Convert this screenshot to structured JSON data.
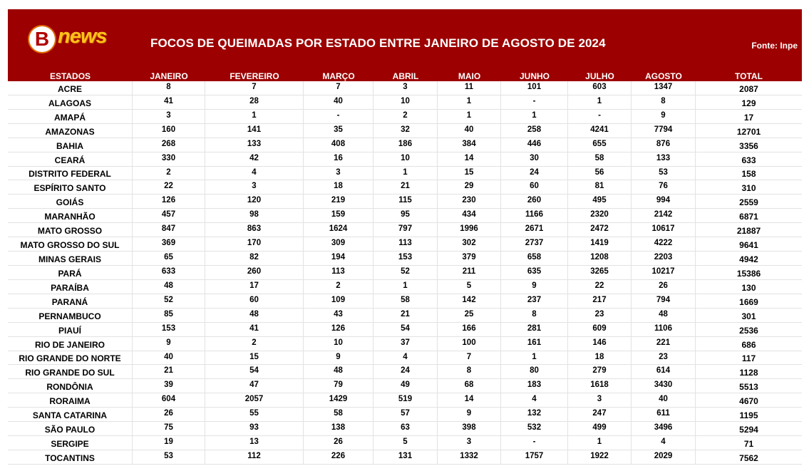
{
  "brand": {
    "mark": "B",
    "word": "news"
  },
  "title": "FOCOS DE QUEIMADAS POR ESTADO ENTRE JANEIRO DE AGOSTO DE 2024",
  "source": "Fonte: Inpe",
  "columns": [
    "ESTADOS",
    "JANEIRO",
    "FEVEREIRO",
    "MARÇO",
    "ABRIL",
    "MAIO",
    "JUNHO",
    "JULHO",
    "AGOSTO",
    "TOTAL"
  ],
  "rows": [
    [
      "ACRE",
      "8",
      "7",
      "7",
      "3",
      "11",
      "101",
      "603",
      "1347",
      "2087"
    ],
    [
      "ALAGOAS",
      "41",
      "28",
      "40",
      "10",
      "1",
      "-",
      "1",
      "8",
      "129"
    ],
    [
      "AMAPÁ",
      "3",
      "1",
      "-",
      "2",
      "1",
      "1",
      "-",
      "9",
      "17"
    ],
    [
      "AMAZONAS",
      "160",
      "141",
      "35",
      "32",
      "40",
      "258",
      "4241",
      "7794",
      "12701"
    ],
    [
      "BAHIA",
      "268",
      "133",
      "408",
      "186",
      "384",
      "446",
      "655",
      "876",
      "3356"
    ],
    [
      "CEARÁ",
      "330",
      "42",
      "16",
      "10",
      "14",
      "30",
      "58",
      "133",
      "633"
    ],
    [
      "DISTRITO FEDERAL",
      "2",
      "4",
      "3",
      "1",
      "15",
      "24",
      "56",
      "53",
      "158"
    ],
    [
      "ESPÍRITO SANTO",
      "22",
      "3",
      "18",
      "21",
      "29",
      "60",
      "81",
      "76",
      "310"
    ],
    [
      "GOIÁS",
      "126",
      "120",
      "219",
      "115",
      "230",
      "260",
      "495",
      "994",
      "2559"
    ],
    [
      "MARANHÃO",
      "457",
      "98",
      "159",
      "95",
      "434",
      "1166",
      "2320",
      "2142",
      "6871"
    ],
    [
      "MATO GROSSO",
      "847",
      "863",
      "1624",
      "797",
      "1996",
      "2671",
      "2472",
      "10617",
      "21887"
    ],
    [
      "MATO GROSSO DO SUL",
      "369",
      "170",
      "309",
      "113",
      "302",
      "2737",
      "1419",
      "4222",
      "9641"
    ],
    [
      "MINAS GERAIS",
      "65",
      "82",
      "194",
      "153",
      "379",
      "658",
      "1208",
      "2203",
      "4942"
    ],
    [
      "PARÁ",
      "633",
      "260",
      "113",
      "52",
      "211",
      "635",
      "3265",
      "10217",
      "15386"
    ],
    [
      "PARAÍBA",
      "48",
      "17",
      "2",
      "1",
      "5",
      "9",
      "22",
      "26",
      "130"
    ],
    [
      "PARANÁ",
      "52",
      "60",
      "109",
      "58",
      "142",
      "237",
      "217",
      "794",
      "1669"
    ],
    [
      "PERNAMBUCO",
      "85",
      "48",
      "43",
      "21",
      "25",
      "8",
      "23",
      "48",
      "301"
    ],
    [
      "PIAUÍ",
      "153",
      "41",
      "126",
      "54",
      "166",
      "281",
      "609",
      "1106",
      "2536"
    ],
    [
      "RIO DE JANEIRO",
      "9",
      "2",
      "10",
      "37",
      "100",
      "161",
      "146",
      "221",
      "686"
    ],
    [
      "RIO GRANDE DO NORTE",
      "40",
      "15",
      "9",
      "4",
      "7",
      "1",
      "18",
      "23",
      "117"
    ],
    [
      "RIO GRANDE DO SUL",
      "21",
      "54",
      "48",
      "24",
      "8",
      "80",
      "279",
      "614",
      "1128"
    ],
    [
      "RONDÔNIA",
      "39",
      "47",
      "79",
      "49",
      "68",
      "183",
      "1618",
      "3430",
      "5513"
    ],
    [
      "RORAIMA",
      "604",
      "2057",
      "1429",
      "519",
      "14",
      "4",
      "3",
      "40",
      "4670"
    ],
    [
      "SANTA CATARINA",
      "26",
      "55",
      "58",
      "57",
      "9",
      "132",
      "247",
      "611",
      "1195"
    ],
    [
      "SÃO PAULO",
      "75",
      "93",
      "138",
      "63",
      "398",
      "532",
      "499",
      "3496",
      "5294"
    ],
    [
      "SERGIPE",
      "19",
      "13",
      "26",
      "5",
      "3",
      "-",
      "1",
      "4",
      "71"
    ],
    [
      "TOCANTINS",
      "53",
      "112",
      "226",
      "131",
      "1332",
      "1757",
      "1922",
      "2029",
      "7562"
    ]
  ],
  "colors": {
    "header_bg": "#9c0000",
    "logo_accent": "#ffc21a"
  }
}
